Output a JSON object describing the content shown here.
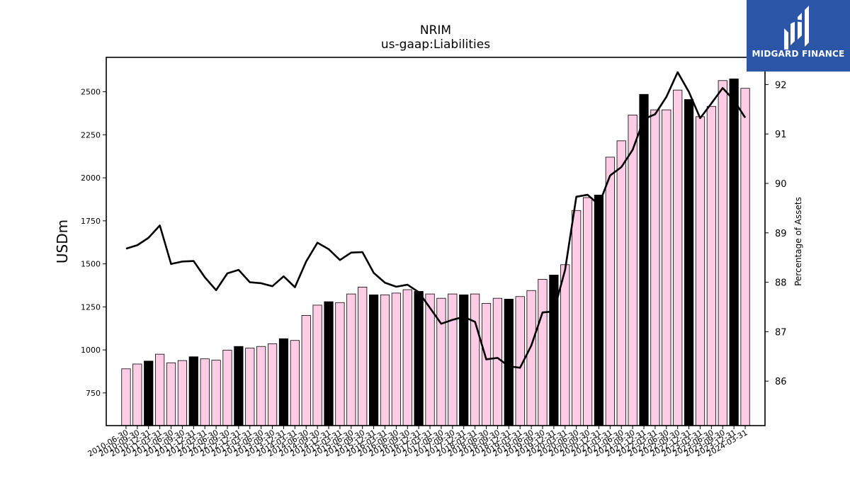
{
  "brand": {
    "name": "MIDGARD FINANCE",
    "icon": "midgard-logo-icon",
    "color": "#2b56a8"
  },
  "chart_data": {
    "type": "bar",
    "title": "NRIM",
    "subtitle": "us-gaap:Liabilities",
    "ylabel": "USDm",
    "y2label": "Percentage of Assets",
    "ylim": [
      560,
      2700
    ],
    "y2lim": [
      85.1,
      92.55
    ],
    "yticks": [
      750,
      1000,
      1250,
      1500,
      1750,
      2000,
      2250,
      2500
    ],
    "y2ticks": [
      86,
      87,
      88,
      89,
      90,
      91,
      92
    ],
    "categories": [
      "2010-06-30",
      "2010-09-30",
      "2010-12-31",
      "2011-03-31",
      "2011-06-30",
      "2011-09-30",
      "2011-12-31",
      "2012-03-31",
      "2012-06-30",
      "2012-09-30",
      "2012-12-31",
      "2013-03-31",
      "2013-06-30",
      "2013-09-30",
      "2013-12-31",
      "2014-03-31",
      "2014-06-30",
      "2014-09-30",
      "2014-12-31",
      "2015-03-31",
      "2015-06-30",
      "2015-09-30",
      "2015-12-31",
      "2016-03-31",
      "2016-06-30",
      "2016-09-30",
      "2016-12-31",
      "2017-03-31",
      "2017-06-30",
      "2017-09-30",
      "2017-12-31",
      "2018-03-31",
      "2018-06-30",
      "2018-09-30",
      "2018-12-31",
      "2019-03-31",
      "2019-06-30",
      "2019-09-30",
      "2019-12-31",
      "2020-03-31",
      "2020-06-30",
      "2020-09-30",
      "2020-12-31",
      "2021-03-31",
      "2021-06-30",
      "2021-09-30",
      "2021-12-31",
      "2022-03-31",
      "2022-06-30",
      "2022-09-30",
      "2022-12-31",
      "2023-03-31",
      "2023-06-30",
      "2023-09-30",
      "2023-12-31",
      "2024-03-31"
    ],
    "series": [
      {
        "kind": "bar",
        "axis": "left",
        "color": "#ffcce6",
        "highlight_color": "#000000",
        "values": [
          890,
          918,
          935,
          975,
          925,
          938,
          960,
          948,
          940,
          998,
          1020,
          1010,
          1020,
          1035,
          1065,
          1055,
          1200,
          1260,
          1280,
          1275,
          1325,
          1365,
          1320,
          1320,
          1330,
          1350,
          1340,
          1325,
          1300,
          1325,
          1320,
          1325,
          1270,
          1300,
          1295,
          1310,
          1345,
          1410,
          1435,
          1495,
          1810,
          1885,
          1900,
          2120,
          2215,
          2365,
          2485,
          2395,
          2395,
          2510,
          2455,
          2355,
          2415,
          2565,
          2575,
          2520
        ],
        "highlighted": [
          false,
          false,
          true,
          false,
          false,
          false,
          true,
          false,
          false,
          false,
          true,
          false,
          false,
          false,
          true,
          false,
          false,
          false,
          true,
          false,
          false,
          false,
          true,
          false,
          false,
          false,
          true,
          false,
          false,
          false,
          true,
          false,
          false,
          false,
          true,
          false,
          false,
          false,
          true,
          false,
          false,
          false,
          true,
          false,
          false,
          false,
          true,
          false,
          false,
          false,
          true,
          false,
          false,
          false,
          true,
          false
        ]
      },
      {
        "kind": "line",
        "axis": "right",
        "color": "#000000",
        "values": [
          88.68,
          88.75,
          88.9,
          89.15,
          88.37,
          88.42,
          88.43,
          88.1,
          87.84,
          88.18,
          88.25,
          88.0,
          87.98,
          87.92,
          88.12,
          87.9,
          88.42,
          88.8,
          88.67,
          88.45,
          88.6,
          88.61,
          88.19,
          87.99,
          87.91,
          87.95,
          87.8,
          87.48,
          87.16,
          87.24,
          87.3,
          87.2,
          86.44,
          86.47,
          86.3,
          86.27,
          86.72,
          87.39,
          87.41,
          88.25,
          89.73,
          89.77,
          89.57,
          90.16,
          90.33,
          90.68,
          91.3,
          91.4,
          91.75,
          92.25,
          91.85,
          91.32,
          91.62,
          91.93,
          91.68,
          91.33
        ]
      }
    ],
    "grid": false,
    "legend": "none"
  }
}
